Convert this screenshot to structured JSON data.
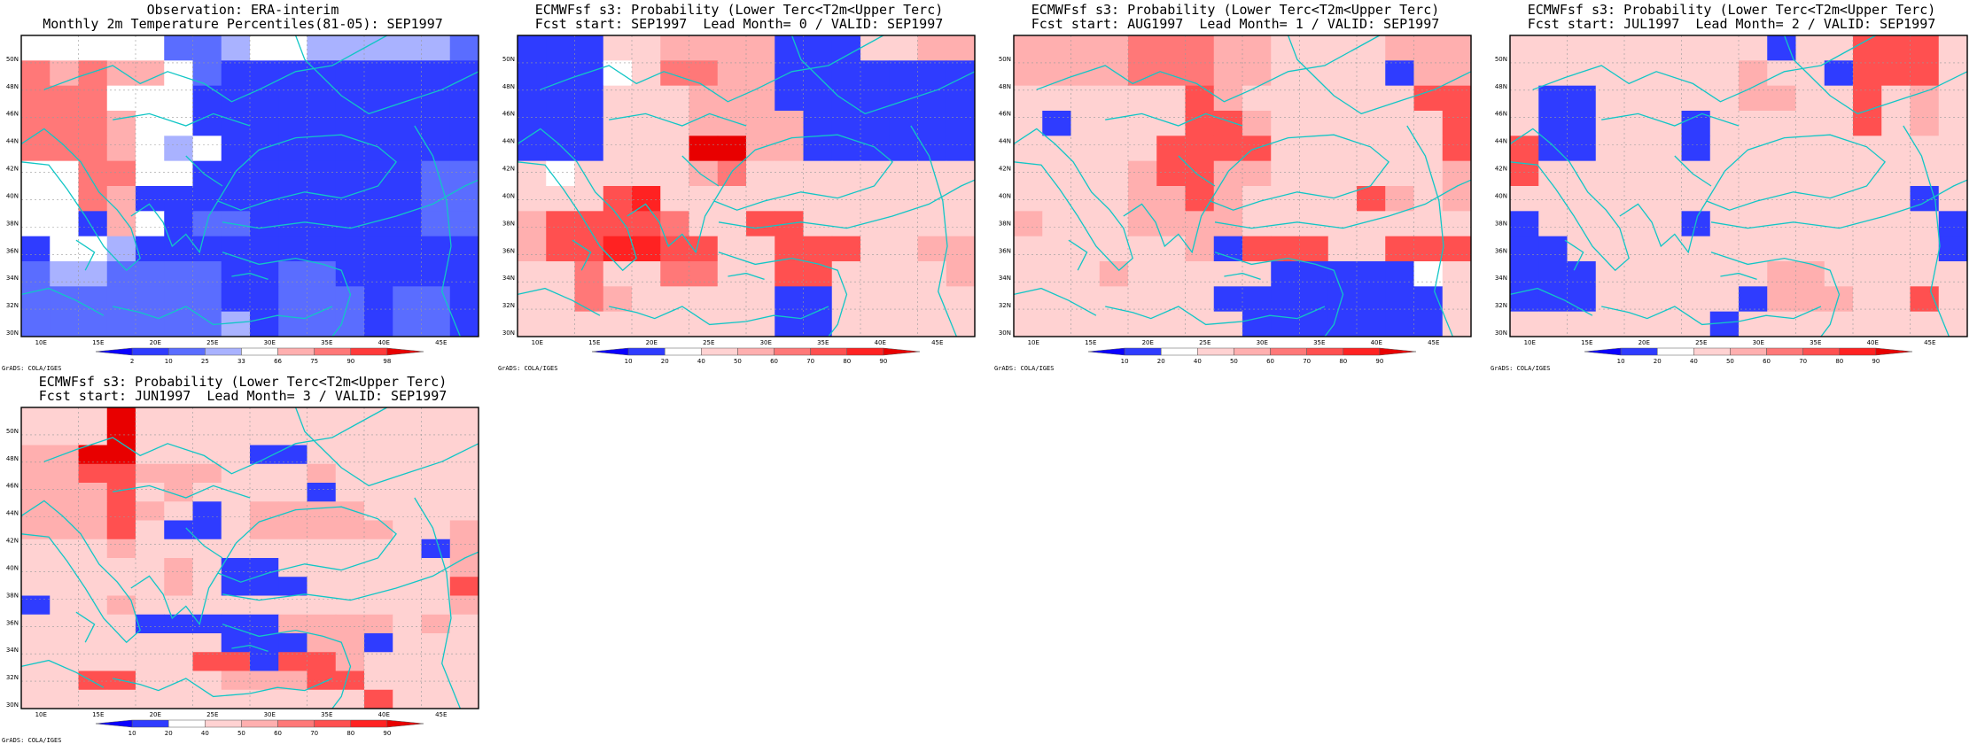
{
  "palettes": {
    "percentile": [
      "#0a00ff",
      "#2f3cff",
      "#5a6dff",
      "#a9b2ff",
      "#ffffff",
      "#ffafaf",
      "#ff7878",
      "#ff3a3a",
      "#e80000"
    ],
    "probability": [
      "#0a00ff",
      "#2f3cff",
      "#ffffff",
      "#ffd2d2",
      "#ffafaf",
      "#ff7878",
      "#ff5050",
      "#ff2222",
      "#e80000"
    ]
  },
  "axis_lon": [
    "10E",
    "15E",
    "20E",
    "25E",
    "30E",
    "35E",
    "40E",
    "45E"
  ],
  "axis_lat": [
    "30N",
    "32N",
    "34N",
    "36N",
    "38N",
    "40N",
    "42N",
    "44N",
    "46N",
    "48N",
    "50N"
  ],
  "panels": [
    {
      "title1": "Observation: ERA-interim",
      "title2": "Monthly 2m Temperature Percentiles(81-05): SEP1997",
      "credit": "GrADS: COLA/IGES",
      "legend_type": "percentile",
      "colorbar": [
        "2",
        "10",
        "25",
        "33",
        "66",
        "75",
        "90",
        "98"
      ],
      "grid": [
        "4444422344333332",
        "6565542111111111",
        "6664441111111111",
        "6665441111111111",
        "6665434111111111",
        "4466441111111122",
        "4465111111111122",
        "4415412211111122",
        "1443111111111111",
        "2332222112211111",
        "2222222112221221",
        "2222222312221221"
      ]
    },
    {
      "title1": "ECMWFsf s3: Probability (Lower Terc<T2m<Upper Terc)",
      "title2": "Fcst start: SEP1997  Lead Month= 0 / VALID: SEP1997",
      "credit": "GrADS: COLA/IGES",
      "legend_type": "probability",
      "colorbar": [
        "10",
        "20",
        "40",
        "50",
        "60",
        "70",
        "80",
        "90"
      ],
      "grid": [
        "1113344441113344",
        "1112355441111111",
        "1113334441111111",
        "1113334444111111",
        "1113338844111111",
        "3233334533333333",
        "3336733333333333",
        "4666653366333333",
        "4667766336663344",
        "3353355336633334",
        "3354333331133333",
        "3333333331133333"
      ]
    },
    {
      "title1": "ECMWFsf s3: Probability (Lower Terc<T2m<Upper Terc)",
      "title2": "Fcst start: AUG1997  Lead Month= 1 / VALID: SEP1997",
      "credit": "GrADS: COLA/IGES",
      "legend_type": "probability",
      "colorbar": [
        "10",
        "20",
        "40",
        "50",
        "60",
        "70",
        "80",
        "90"
      ],
      "grid": [
        "4444555443333444",
        "4444555443333144",
        "3333336433333366",
        "3133336643333336",
        "3333366663333336",
        "3333466443333334",
        "3333446433336434",
        "4333444433333333",
        "3333334166633666",
        "3334333331111123",
        "3333333111111113",
        "3333333311111113"
      ]
    },
    {
      "title1": "ECMWFsf s3: Probability (Lower Terc<T2m<Upper Terc)",
      "title2": "Fcst start: JUL1997  Lead Month= 2 / VALID: SEP1997",
      "credit": "GrADS: COLA/IGES",
      "legend_type": "probability",
      "colorbar": [
        "10",
        "20",
        "40",
        "50",
        "60",
        "70",
        "80",
        "90"
      ],
      "grid": [
        "3333333331336663",
        "3333333343316663",
        "3113333344336343",
        "3113331333336343",
        "6113331333333333",
        "6333333333333333",
        "3333333333333313",
        "1333331333333331",
        "1133333333333331",
        "1113333334433333",
        "1113333314443363",
        "3333333133333333"
      ]
    },
    {
      "title1": "ECMWFsf s3: Probability (Lower Terc<T2m<Upper Terc)",
      "title2": "Fcst start: JUN1997  Lead Month= 3 / VALID: SEP1997",
      "credit": "GrADS: COLA/IGES",
      "legend_type": "probability",
      "colorbar": [
        "10",
        "20",
        "40",
        "50",
        "60",
        "70",
        "80",
        "90"
      ],
      "grid": [
        "3338333333333333",
        "3338333333333333",
        "4488333311333333",
        "4466444333433333",
        "4446343333133333",
        "4446431344443333",
        "4446311344444334",
        "3334333333333314",
        "3333343113333334",
        "3333343111333336",
        "1334333333333334",
        "3333111114444343",
        "3333333111441333",
        "3333336616643333",
        "3366333444663333",
        "3333333333336333"
      ]
    }
  ]
}
